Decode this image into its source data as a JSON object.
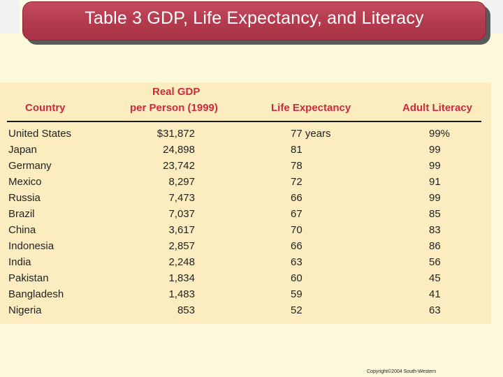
{
  "title": "Table 3 GDP, Life Expectancy, and Literacy",
  "table": {
    "headers": {
      "country": "Country",
      "gdp_line1": "Real GDP",
      "gdp_line2": "per Person (1999)",
      "life": "Life Expectancy",
      "literacy": "Adult Literacy"
    },
    "rows": [
      {
        "country": "United States",
        "gdp": "$31,872",
        "life": "77 years",
        "literacy": "99%"
      },
      {
        "country": "Japan",
        "gdp": "24,898",
        "life": "81",
        "literacy": "99"
      },
      {
        "country": "Germany",
        "gdp": "23,742",
        "life": "78",
        "literacy": "99"
      },
      {
        "country": "Mexico",
        "gdp": "8,297",
        "life": "72",
        "literacy": "91"
      },
      {
        "country": "Russia",
        "gdp": "7,473",
        "life": "66",
        "literacy": "99"
      },
      {
        "country": "Brazil",
        "gdp": "7,037",
        "life": "67",
        "literacy": "85"
      },
      {
        "country": "China",
        "gdp": "3,617",
        "life": "70",
        "literacy": "83"
      },
      {
        "country": "Indonesia",
        "gdp": "2,857",
        "life": "66",
        "literacy": "86"
      },
      {
        "country": "India",
        "gdp": "2,248",
        "life": "63",
        "literacy": "56"
      },
      {
        "country": "Pakistan",
        "gdp": "1,834",
        "life": "60",
        "literacy": "45"
      },
      {
        "country": "Bangladesh",
        "gdp": "1,483",
        "life": "59",
        "literacy": "41"
      },
      {
        "country": "Nigeria",
        "gdp": "853",
        "life": "52",
        "literacy": "63"
      }
    ]
  },
  "footer": {
    "copyright": "Copyright©2004 South-Western"
  },
  "colors": {
    "title_bar": "#b23a4d",
    "header_text": "#cc2a3d",
    "table_background": "#fcedc0",
    "page_background": "#fbf8db"
  }
}
